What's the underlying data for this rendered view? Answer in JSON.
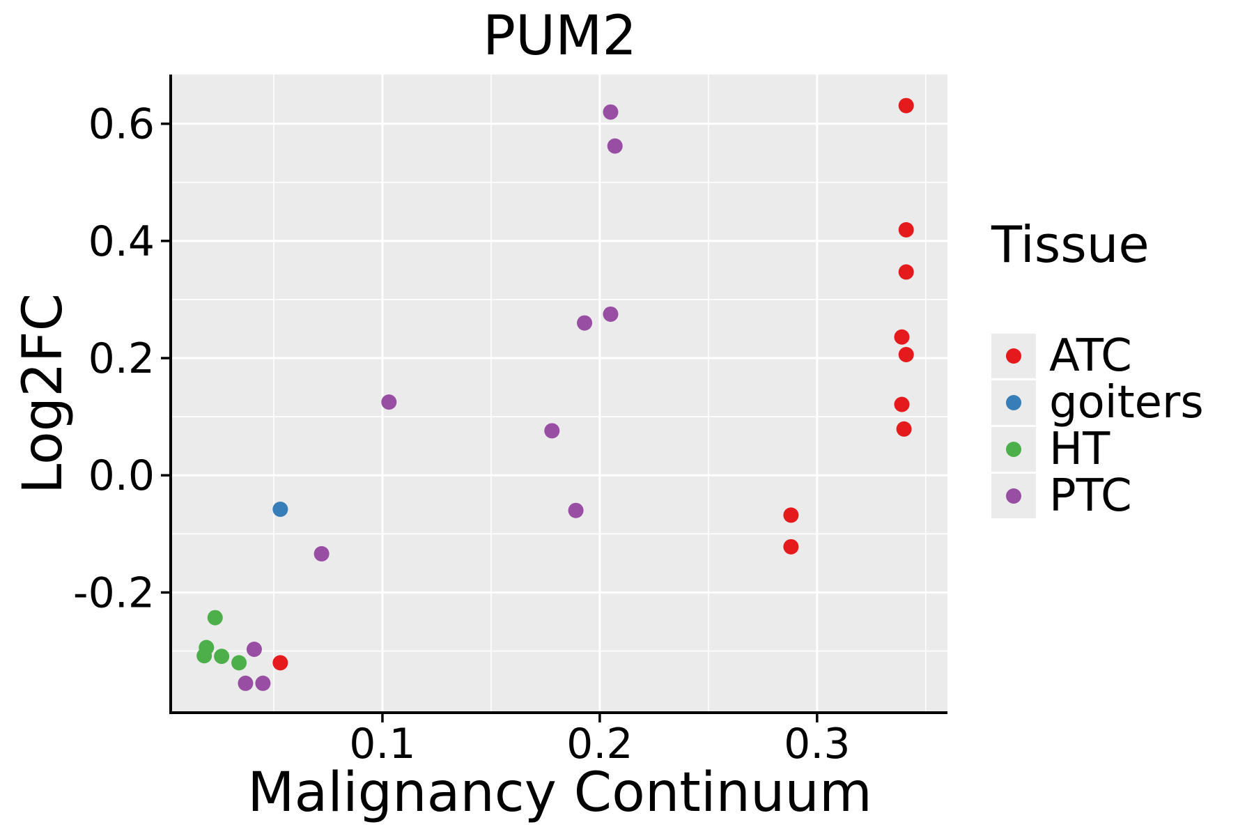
{
  "figure": {
    "title": "PUM2"
  },
  "axes": {
    "x": {
      "title": "Malignancy Continuum",
      "tick_labels": [
        "0.1",
        "0.2",
        "0.3"
      ],
      "tick_values": [
        0.1,
        0.2,
        0.3
      ],
      "minor_values": [
        0.05,
        0.15,
        0.25,
        0.35
      ]
    },
    "y": {
      "title": "Log2FC",
      "tick_labels": [
        "0.6",
        "0.4",
        "0.2",
        "0.0",
        "-0.2"
      ],
      "tick_values": [
        0.6,
        0.4,
        0.2,
        0.0,
        -0.2
      ],
      "minor_values": [
        0.5,
        0.3,
        0.1,
        -0.1,
        -0.3
      ]
    }
  },
  "legend": {
    "title": "Tissue",
    "items": [
      {
        "label": "ATC",
        "color": "#E41A1C"
      },
      {
        "label": "goiters",
        "color": "#377EB8"
      },
      {
        "label": "HT",
        "color": "#4DAF4A"
      },
      {
        "label": "PTC",
        "color": "#984EA3"
      }
    ]
  },
  "style": {
    "panel_bg": "#EBEBEB",
    "grid_color": "#FFFFFF",
    "axis_color": "#000000",
    "text_color": "#000000",
    "legend_key_bg": "#EBEBEB"
  },
  "chart_data": {
    "type": "scatter",
    "title": "PUM2",
    "xlabel": "Malignancy Continuum",
    "ylabel": "Log2FC",
    "xlim": [
      0.0032,
      0.36
    ],
    "ylim": [
      -0.404,
      0.684
    ],
    "grid": "major+minor",
    "legend_title": "Tissue",
    "legend_position": "right",
    "point_radius_px": 11,
    "series": [
      {
        "name": "ATC",
        "color": "#E41A1C",
        "points": [
          [
            0.341,
            0.631
          ],
          [
            0.341,
            0.419
          ],
          [
            0.341,
            0.347
          ],
          [
            0.339,
            0.236
          ],
          [
            0.341,
            0.206
          ],
          [
            0.339,
            0.121
          ],
          [
            0.34,
            0.079
          ],
          [
            0.288,
            -0.068
          ],
          [
            0.288,
            -0.122
          ],
          [
            0.053,
            -0.32
          ]
        ]
      },
      {
        "name": "goiters",
        "color": "#377EB8",
        "points": [
          [
            0.053,
            -0.058
          ]
        ]
      },
      {
        "name": "HT",
        "color": "#4DAF4A",
        "points": [
          [
            0.023,
            -0.243
          ],
          [
            0.019,
            -0.294
          ],
          [
            0.018,
            -0.308
          ],
          [
            0.026,
            -0.309
          ],
          [
            0.034,
            -0.32
          ]
        ]
      },
      {
        "name": "PTC",
        "color": "#984EA3",
        "points": [
          [
            0.205,
            0.62
          ],
          [
            0.207,
            0.562
          ],
          [
            0.205,
            0.275
          ],
          [
            0.193,
            0.26
          ],
          [
            0.103,
            0.125
          ],
          [
            0.178,
            0.076
          ],
          [
            0.189,
            -0.06
          ],
          [
            0.072,
            -0.134
          ],
          [
            0.041,
            -0.297
          ],
          [
            0.037,
            -0.355
          ],
          [
            0.045,
            -0.355
          ]
        ]
      }
    ]
  }
}
